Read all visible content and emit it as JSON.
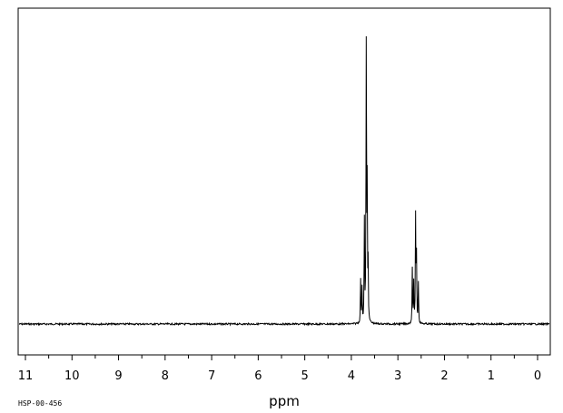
{
  "spectrum_code": "HSP-00-456",
  "chart_data": {
    "type": "line",
    "title": "",
    "xlabel": "ppm",
    "ylabel": "",
    "xlim": [
      11.1,
      -0.3
    ],
    "x_reversed": true,
    "ylim": [
      -0.1,
      1.0
    ],
    "grid": false,
    "legend": "none",
    "x_ticks": [
      "11",
      "10",
      "9",
      "8",
      "7",
      "6",
      "5",
      "4",
      "3",
      "2",
      "1",
      "0"
    ],
    "peaks": [
      {
        "ppm": 3.8,
        "intensity": 0.15
      },
      {
        "ppm": 3.77,
        "intensity": 0.12
      },
      {
        "ppm": 3.72,
        "intensity": 0.35
      },
      {
        "ppm": 3.68,
        "intensity": 1.0
      },
      {
        "ppm": 3.66,
        "intensity": 0.45
      },
      {
        "ppm": 3.64,
        "intensity": 0.19
      },
      {
        "ppm": 2.69,
        "intensity": 0.19
      },
      {
        "ppm": 2.66,
        "intensity": 0.14
      },
      {
        "ppm": 2.62,
        "intensity": 0.37
      },
      {
        "ppm": 2.6,
        "intensity": 0.23
      },
      {
        "ppm": 2.56,
        "intensity": 0.14
      }
    ],
    "line_color": "#000000"
  }
}
